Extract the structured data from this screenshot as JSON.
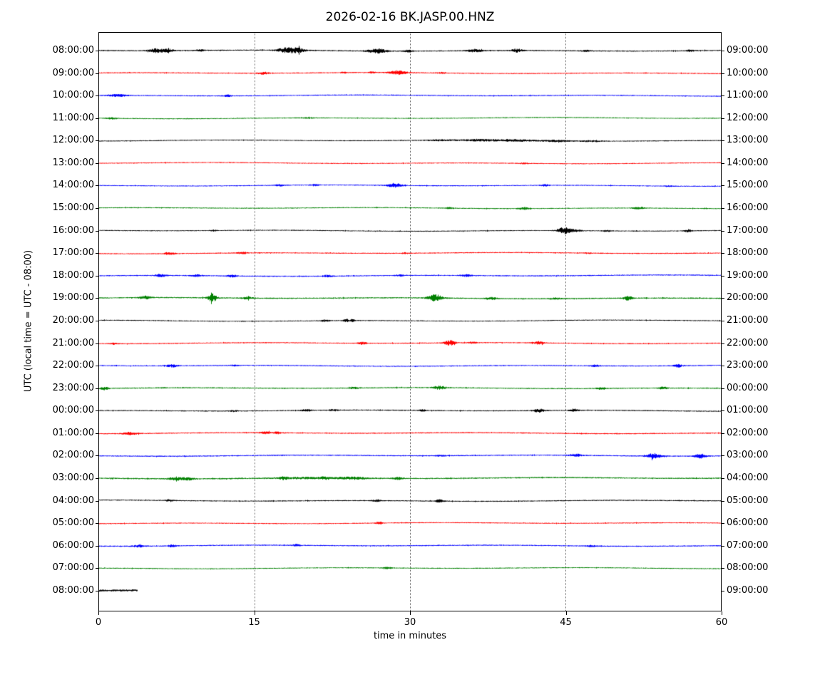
{
  "title": "2026-02-16 BK.JASP.00.HNZ",
  "axes": {
    "ylabel": "UTC (local time = UTC - 08:00)",
    "xlabel": "time in minutes"
  },
  "colors": {
    "black": "#000000",
    "red": "#ff0000",
    "blue": "#0000ff",
    "green": "#008000"
  },
  "chart_data": {
    "type": "line",
    "subtype": "helicorder-dayplot",
    "title": "2026-02-16 BK.JASP.00.HNZ",
    "xlabel": "time in minutes",
    "ylabel": "UTC (local time = UTC - 08:00)",
    "xlim": [
      0,
      60
    ],
    "x_ticks": [
      0,
      15,
      30,
      45,
      60
    ],
    "gridline_minutes": [
      15,
      30,
      45
    ],
    "grid": "vertical-dotted",
    "minutes_per_row": 60,
    "rows": [
      {
        "left_label": "08:00:00",
        "right_label": "09:00:00",
        "color": "black",
        "base": 0.8,
        "duration": 60,
        "events": [
          [
            5.5,
            2.5,
            0.7
          ],
          [
            6.6,
            2.0,
            0.5
          ],
          [
            9.8,
            1.2,
            0.4
          ],
          [
            18.2,
            3.5,
            1.0
          ],
          [
            19.3,
            2.0,
            0.6
          ],
          [
            26.8,
            3.0,
            0.9
          ],
          [
            29.8,
            1.3,
            0.4
          ],
          [
            36.3,
            1.8,
            0.7
          ],
          [
            40.3,
            2.2,
            0.5
          ],
          [
            47.0,
            0.8,
            0.5
          ],
          [
            57.0,
            1.0,
            0.4
          ]
        ]
      },
      {
        "left_label": "09:00:00",
        "right_label": "10:00:00",
        "color": "red",
        "base": 0.75,
        "duration": 60,
        "events": [
          [
            15.8,
            1.6,
            0.5
          ],
          [
            23.6,
            1.0,
            0.3
          ],
          [
            26.3,
            1.2,
            0.3
          ],
          [
            28.8,
            2.6,
            0.9
          ],
          [
            33.0,
            0.8,
            0.4
          ]
        ]
      },
      {
        "left_label": "10:00:00",
        "right_label": "11:00:00",
        "color": "blue",
        "base": 0.75,
        "duration": 60,
        "events": [
          [
            1.8,
            1.4,
            0.9
          ],
          [
            12.4,
            1.3,
            0.35
          ]
        ]
      },
      {
        "left_label": "11:00:00",
        "right_label": "12:00:00",
        "color": "green",
        "base": 0.7,
        "duration": 60,
        "events": [
          [
            1.2,
            1.0,
            0.5
          ],
          [
            20.0,
            0.4,
            1.0
          ]
        ]
      },
      {
        "left_label": "12:00:00",
        "right_label": "13:00:00",
        "color": "black",
        "base": 0.7,
        "duration": 60,
        "events": [
          [
            33.0,
            0.8,
            1.5
          ],
          [
            36.5,
            1.2,
            1.5
          ],
          [
            40.0,
            1.3,
            2.0
          ],
          [
            44.0,
            1.1,
            1.5
          ],
          [
            47.5,
            0.8,
            1.0
          ]
        ]
      },
      {
        "left_label": "13:00:00",
        "right_label": "14:00:00",
        "color": "red",
        "base": 0.7,
        "duration": 60,
        "events": [
          [
            41.0,
            0.7,
            0.5
          ]
        ]
      },
      {
        "left_label": "14:00:00",
        "right_label": "15:00:00",
        "color": "blue",
        "base": 0.7,
        "duration": 60,
        "events": [
          [
            17.4,
            1.5,
            0.4
          ],
          [
            20.8,
            1.2,
            0.4
          ],
          [
            28.5,
            3.0,
            0.7
          ],
          [
            43.0,
            1.2,
            0.4
          ],
          [
            55.0,
            0.6,
            0.4
          ]
        ]
      },
      {
        "left_label": "15:00:00",
        "right_label": "16:00:00",
        "color": "green",
        "base": 0.7,
        "duration": 60,
        "events": [
          [
            33.8,
            1.0,
            0.4
          ],
          [
            41.0,
            1.4,
            0.5
          ],
          [
            52.0,
            1.4,
            0.5
          ]
        ]
      },
      {
        "left_label": "16:00:00",
        "right_label": "17:00:00",
        "color": "black",
        "base": 0.7,
        "duration": 60,
        "events": [
          [
            11.0,
            0.9,
            0.3
          ],
          [
            44.8,
            4.5,
            0.55
          ],
          [
            45.8,
            1.6,
            0.7
          ],
          [
            49.0,
            0.9,
            0.5
          ],
          [
            56.8,
            1.8,
            0.35
          ]
        ]
      },
      {
        "left_label": "17:00:00",
        "right_label": "18:00:00",
        "color": "red",
        "base": 0.75,
        "duration": 60,
        "events": [
          [
            6.8,
            1.3,
            0.5
          ],
          [
            13.8,
            1.4,
            0.4
          ],
          [
            29.5,
            0.9,
            0.3
          ],
          [
            47.0,
            0.7,
            0.4
          ]
        ]
      },
      {
        "left_label": "18:00:00",
        "right_label": "19:00:00",
        "color": "blue",
        "base": 0.8,
        "duration": 60,
        "events": [
          [
            5.9,
            1.8,
            0.5
          ],
          [
            9.4,
            1.3,
            0.5
          ],
          [
            12.8,
            1.5,
            0.5
          ],
          [
            22.0,
            1.3,
            0.5
          ],
          [
            29.0,
            0.9,
            0.4
          ],
          [
            35.4,
            1.3,
            0.5
          ]
        ]
      },
      {
        "left_label": "19:00:00",
        "right_label": "20:00:00",
        "color": "green",
        "base": 0.85,
        "duration": 60,
        "events": [
          [
            4.4,
            2.0,
            0.6
          ],
          [
            10.9,
            5.5,
            0.4
          ],
          [
            14.3,
            1.5,
            0.5
          ],
          [
            32.4,
            4.5,
            0.7
          ],
          [
            37.8,
            1.8,
            0.5
          ],
          [
            44.0,
            1.0,
            0.5
          ],
          [
            51.0,
            3.0,
            0.4
          ]
        ]
      },
      {
        "left_label": "20:00:00",
        "right_label": "21:00:00",
        "color": "black",
        "base": 0.7,
        "duration": 60,
        "events": [
          [
            21.8,
            1.2,
            0.4
          ],
          [
            23.8,
            2.2,
            0.25
          ],
          [
            24.4,
            1.6,
            0.25
          ]
        ]
      },
      {
        "left_label": "21:00:00",
        "right_label": "22:00:00",
        "color": "red",
        "base": 0.75,
        "duration": 60,
        "events": [
          [
            1.4,
            1.2,
            0.3
          ],
          [
            25.4,
            1.5,
            0.4
          ],
          [
            33.8,
            3.5,
            0.5
          ],
          [
            36.0,
            1.0,
            0.4
          ],
          [
            42.4,
            1.8,
            0.45
          ]
        ]
      },
      {
        "left_label": "22:00:00",
        "right_label": "23:00:00",
        "color": "blue",
        "base": 0.75,
        "duration": 60,
        "events": [
          [
            7.0,
            1.6,
            0.6
          ],
          [
            13.0,
            0.8,
            0.4
          ],
          [
            47.8,
            1.5,
            0.4
          ],
          [
            55.8,
            1.9,
            0.45
          ]
        ]
      },
      {
        "left_label": "23:00:00",
        "right_label": "00:00:00",
        "color": "green",
        "base": 0.8,
        "duration": 60,
        "events": [
          [
            0.5,
            1.8,
            0.4
          ],
          [
            24.6,
            1.3,
            0.4
          ],
          [
            32.8,
            2.4,
            0.55
          ],
          [
            48.4,
            1.5,
            0.4
          ],
          [
            54.4,
            1.5,
            0.4
          ]
        ]
      },
      {
        "left_label": "00:00:00",
        "right_label": "01:00:00",
        "color": "black",
        "base": 0.75,
        "duration": 60,
        "events": [
          [
            13.0,
            0.8,
            0.4
          ],
          [
            20.0,
            1.5,
            0.45
          ],
          [
            22.6,
            1.2,
            0.4
          ],
          [
            31.2,
            1.3,
            0.3
          ],
          [
            42.4,
            2.2,
            0.55
          ],
          [
            45.8,
            1.9,
            0.4
          ]
        ]
      },
      {
        "left_label": "01:00:00",
        "right_label": "02:00:00",
        "color": "red",
        "base": 0.8,
        "duration": 60,
        "events": [
          [
            3.0,
            1.9,
            0.6
          ],
          [
            16.0,
            1.5,
            0.5
          ],
          [
            17.2,
            1.2,
            0.4
          ]
        ]
      },
      {
        "left_label": "02:00:00",
        "right_label": "03:00:00",
        "color": "blue",
        "base": 0.8,
        "duration": 60,
        "events": [
          [
            33.0,
            1.0,
            0.5
          ],
          [
            46.0,
            1.7,
            0.6
          ],
          [
            53.5,
            3.5,
            0.7
          ],
          [
            58.0,
            3.0,
            0.5
          ]
        ]
      },
      {
        "left_label": "03:00:00",
        "right_label": "04:00:00",
        "color": "green",
        "base": 0.9,
        "duration": 60,
        "events": [
          [
            7.4,
            2.0,
            0.7
          ],
          [
            8.6,
            1.6,
            0.5
          ],
          [
            17.8,
            1.5,
            0.4
          ],
          [
            21.8,
            1.2,
            0.4
          ],
          [
            24.5,
            1.3,
            1.5
          ],
          [
            28.8,
            1.3,
            0.5
          ],
          [
            20.0,
            0.9,
            3.0
          ]
        ]
      },
      {
        "left_label": "04:00:00",
        "right_label": "05:00:00",
        "color": "black",
        "base": 0.75,
        "duration": 60,
        "events": [
          [
            6.8,
            1.3,
            0.4
          ],
          [
            26.8,
            1.2,
            0.4
          ],
          [
            32.8,
            1.9,
            0.4
          ]
        ]
      },
      {
        "left_label": "05:00:00",
        "right_label": "06:00:00",
        "color": "red",
        "base": 0.7,
        "duration": 60,
        "events": [
          [
            27.0,
            1.9,
            0.3
          ]
        ]
      },
      {
        "left_label": "06:00:00",
        "right_label": "07:00:00",
        "color": "blue",
        "base": 0.8,
        "duration": 60,
        "events": [
          [
            3.8,
            1.3,
            0.6
          ],
          [
            7.0,
            1.5,
            0.4
          ],
          [
            19.0,
            1.2,
            0.4
          ],
          [
            47.5,
            0.9,
            0.5
          ]
        ]
      },
      {
        "left_label": "07:00:00",
        "right_label": "08:00:00",
        "color": "green",
        "base": 0.7,
        "duration": 60,
        "events": [
          [
            27.8,
            1.2,
            0.4
          ]
        ]
      },
      {
        "left_label": "08:00:00",
        "right_label": "09:00:00",
        "color": "black",
        "base": 1.4,
        "duration": 3.7,
        "events": []
      }
    ]
  }
}
